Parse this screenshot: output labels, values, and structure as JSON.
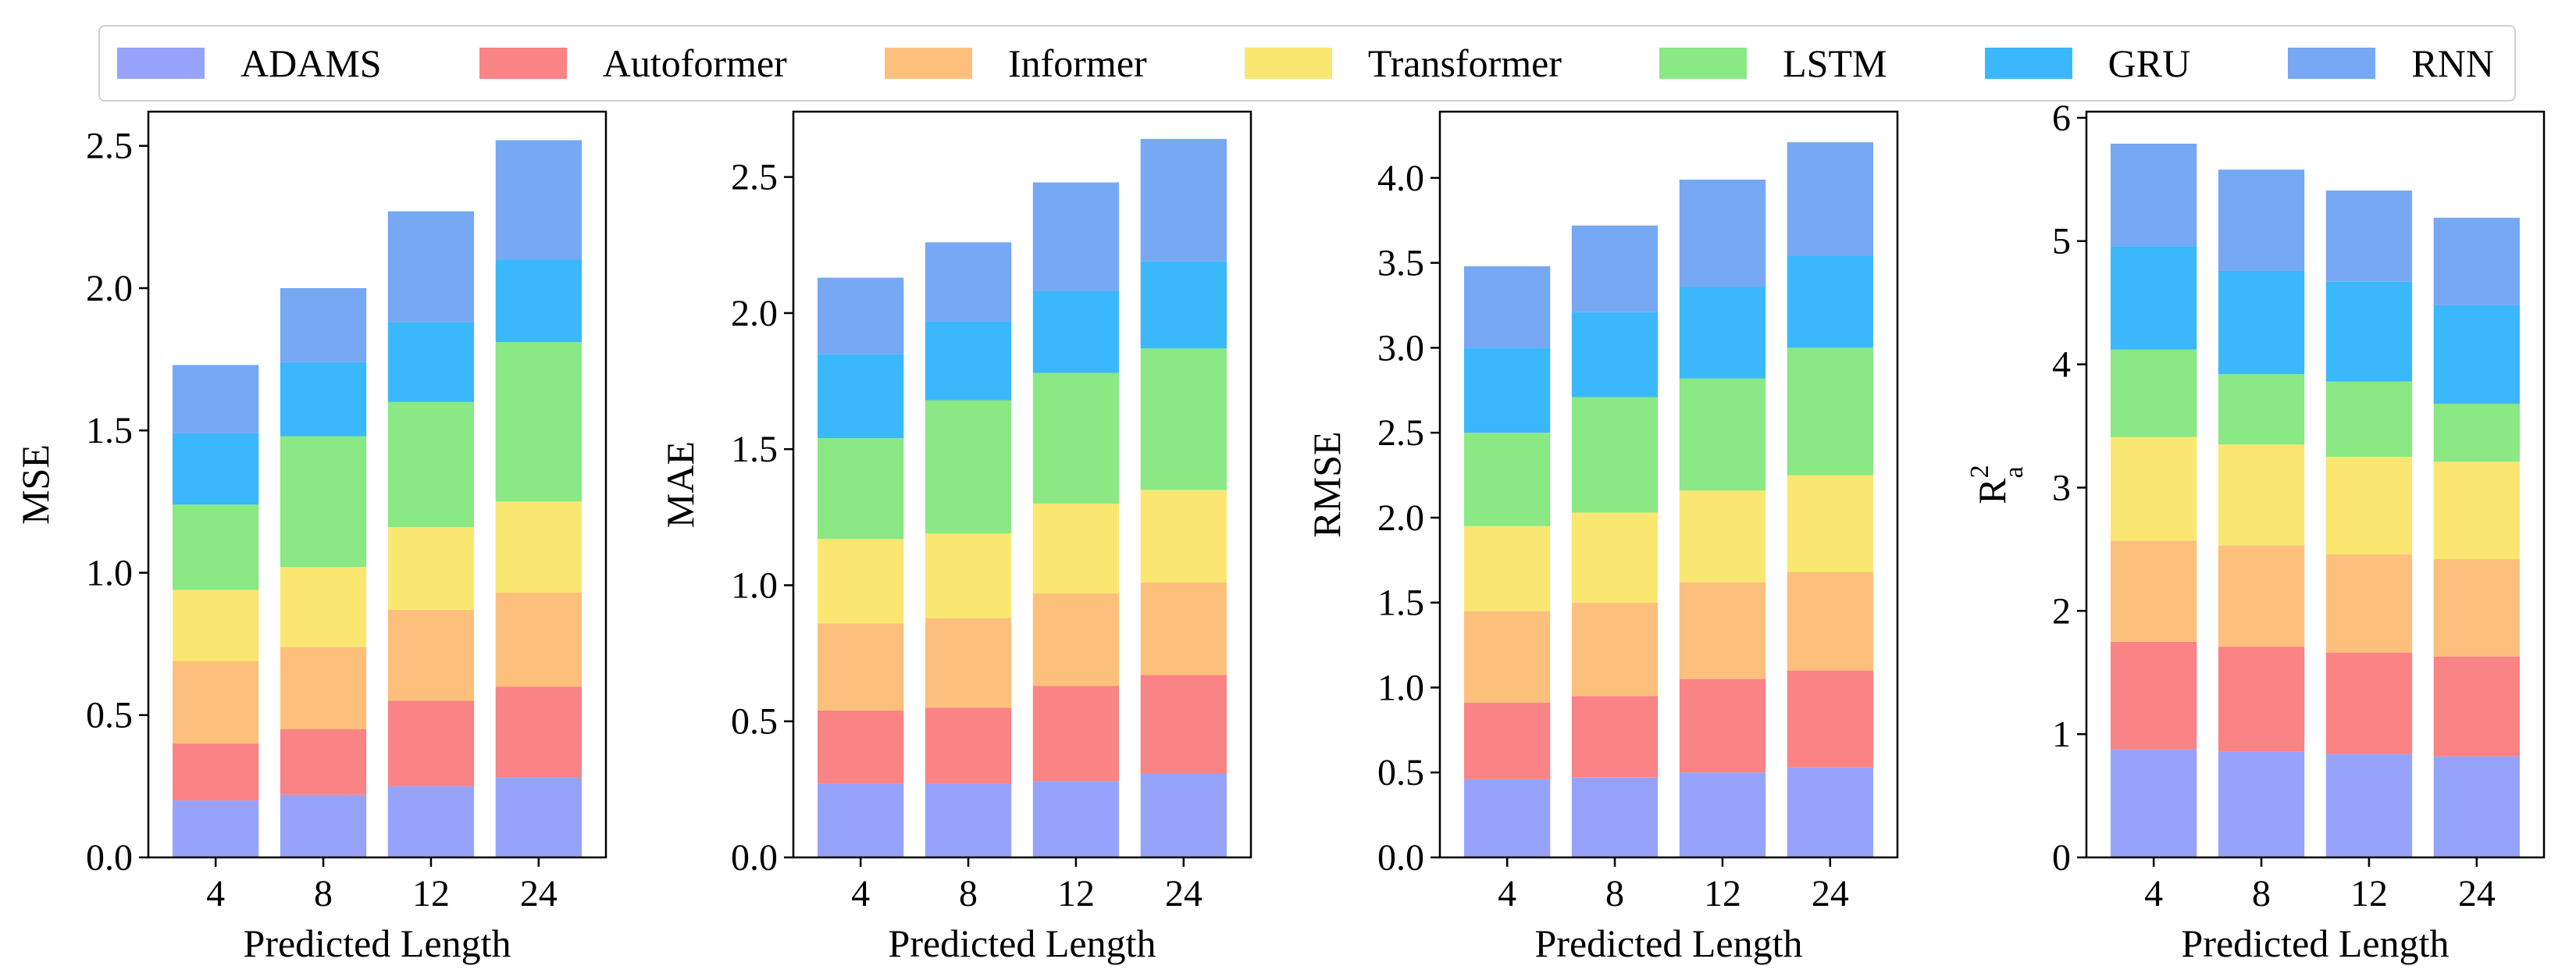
{
  "legend": {
    "items": [
      {
        "label": "ADAMS",
        "color": "#97a3fb"
      },
      {
        "label": "Autoformer",
        "color": "#f98385"
      },
      {
        "label": "Informer",
        "color": "#fdc07c"
      },
      {
        "label": "Transformer",
        "color": "#fae771"
      },
      {
        "label": "LSTM",
        "color": "#8ae885"
      },
      {
        "label": "GRU",
        "color": "#3bb8fb"
      },
      {
        "label": "RNN",
        "color": "#76a8f3"
      }
    ]
  },
  "chart_data": [
    {
      "type": "bar",
      "stacked": true,
      "categories": [
        "4",
        "8",
        "12",
        "24"
      ],
      "xlabel": "Predicted Length",
      "ylabel": "MSE",
      "ylim": [
        0,
        2.62
      ],
      "yticks": [
        0.0,
        0.5,
        1.0,
        1.5,
        2.0,
        2.5
      ],
      "ytick_labels": [
        "0.0",
        "0.5",
        "1.0",
        "1.5",
        "2.0",
        "2.5"
      ],
      "series": [
        {
          "name": "ADAMS",
          "values": [
            0.2,
            0.22,
            0.25,
            0.28
          ]
        },
        {
          "name": "Autoformer",
          "values": [
            0.2,
            0.23,
            0.3,
            0.32
          ]
        },
        {
          "name": "Informer",
          "values": [
            0.29,
            0.29,
            0.32,
            0.33
          ]
        },
        {
          "name": "Transformer",
          "values": [
            0.25,
            0.28,
            0.29,
            0.32
          ]
        },
        {
          "name": "LSTM",
          "values": [
            0.3,
            0.46,
            0.44,
            0.56
          ]
        },
        {
          "name": "GRU",
          "values": [
            0.25,
            0.26,
            0.28,
            0.29
          ]
        },
        {
          "name": "RNN",
          "values": [
            0.24,
            0.26,
            0.39,
            0.42
          ]
        }
      ]
    },
    {
      "type": "bar",
      "stacked": true,
      "categories": [
        "4",
        "8",
        "12",
        "24"
      ],
      "xlabel": "Predicted Length",
      "ylabel": "MAE",
      "ylim": [
        0,
        2.74
      ],
      "yticks": [
        0.0,
        0.5,
        1.0,
        1.5,
        2.0,
        2.5
      ],
      "ytick_labels": [
        "0.0",
        "0.5",
        "1.0",
        "1.5",
        "2.0",
        "2.5"
      ],
      "series": [
        {
          "name": "ADAMS",
          "values": [
            0.27,
            0.27,
            0.28,
            0.31
          ]
        },
        {
          "name": "Autoformer",
          "values": [
            0.27,
            0.28,
            0.35,
            0.36
          ]
        },
        {
          "name": "Informer",
          "values": [
            0.32,
            0.33,
            0.34,
            0.34
          ]
        },
        {
          "name": "Transformer",
          "values": [
            0.31,
            0.31,
            0.33,
            0.34
          ]
        },
        {
          "name": "LSTM",
          "values": [
            0.37,
            0.49,
            0.48,
            0.52
          ]
        },
        {
          "name": "GRU",
          "values": [
            0.31,
            0.29,
            0.3,
            0.32
          ]
        },
        {
          "name": "RNN",
          "values": [
            0.28,
            0.29,
            0.4,
            0.45
          ]
        }
      ]
    },
    {
      "type": "bar",
      "stacked": true,
      "categories": [
        "4",
        "8",
        "12",
        "24"
      ],
      "xlabel": "Predicted Length",
      "ylabel": "RMSE",
      "ylim": [
        0,
        4.39
      ],
      "yticks": [
        0.0,
        0.5,
        1.0,
        1.5,
        2.0,
        2.5,
        3.0,
        3.5,
        4.0
      ],
      "ytick_labels": [
        "0.0",
        "0.5",
        "1.0",
        "1.5",
        "2.0",
        "2.5",
        "3.0",
        "3.5",
        "4.0"
      ],
      "series": [
        {
          "name": "ADAMS",
          "values": [
            0.46,
            0.47,
            0.5,
            0.53
          ]
        },
        {
          "name": "Autoformer",
          "values": [
            0.45,
            0.48,
            0.55,
            0.57
          ]
        },
        {
          "name": "Informer",
          "values": [
            0.54,
            0.55,
            0.57,
            0.58
          ]
        },
        {
          "name": "Transformer",
          "values": [
            0.5,
            0.53,
            0.54,
            0.57
          ]
        },
        {
          "name": "LSTM",
          "values": [
            0.55,
            0.68,
            0.66,
            0.75
          ]
        },
        {
          "name": "GRU",
          "values": [
            0.5,
            0.5,
            0.54,
            0.54
          ]
        },
        {
          "name": "RNN",
          "values": [
            0.48,
            0.51,
            0.63,
            0.67
          ]
        }
      ]
    },
    {
      "type": "bar",
      "stacked": true,
      "categories": [
        "4",
        "8",
        "12",
        "24"
      ],
      "xlabel": "Predicted Length",
      "ylabel": "R",
      "ylabel_superscript": "2",
      "ylabel_subscript": "a",
      "ylim": [
        0,
        6.05
      ],
      "yticks": [
        0,
        1,
        2,
        3,
        4,
        5,
        6
      ],
      "ytick_labels": [
        "0",
        "1",
        "2",
        "3",
        "4",
        "5",
        "6"
      ],
      "series": [
        {
          "name": "ADAMS",
          "values": [
            0.88,
            0.86,
            0.84,
            0.82
          ]
        },
        {
          "name": "Autoformer",
          "values": [
            0.87,
            0.85,
            0.82,
            0.81
          ]
        },
        {
          "name": "Informer",
          "values": [
            0.82,
            0.82,
            0.8,
            0.79
          ]
        },
        {
          "name": "Transformer",
          "values": [
            0.84,
            0.82,
            0.79,
            0.79
          ]
        },
        {
          "name": "LSTM",
          "values": [
            0.71,
            0.57,
            0.61,
            0.47
          ]
        },
        {
          "name": "GRU",
          "values": [
            0.84,
            0.84,
            0.81,
            0.8
          ]
        },
        {
          "name": "RNN",
          "values": [
            0.83,
            0.82,
            0.74,
            0.71
          ]
        }
      ]
    }
  ]
}
